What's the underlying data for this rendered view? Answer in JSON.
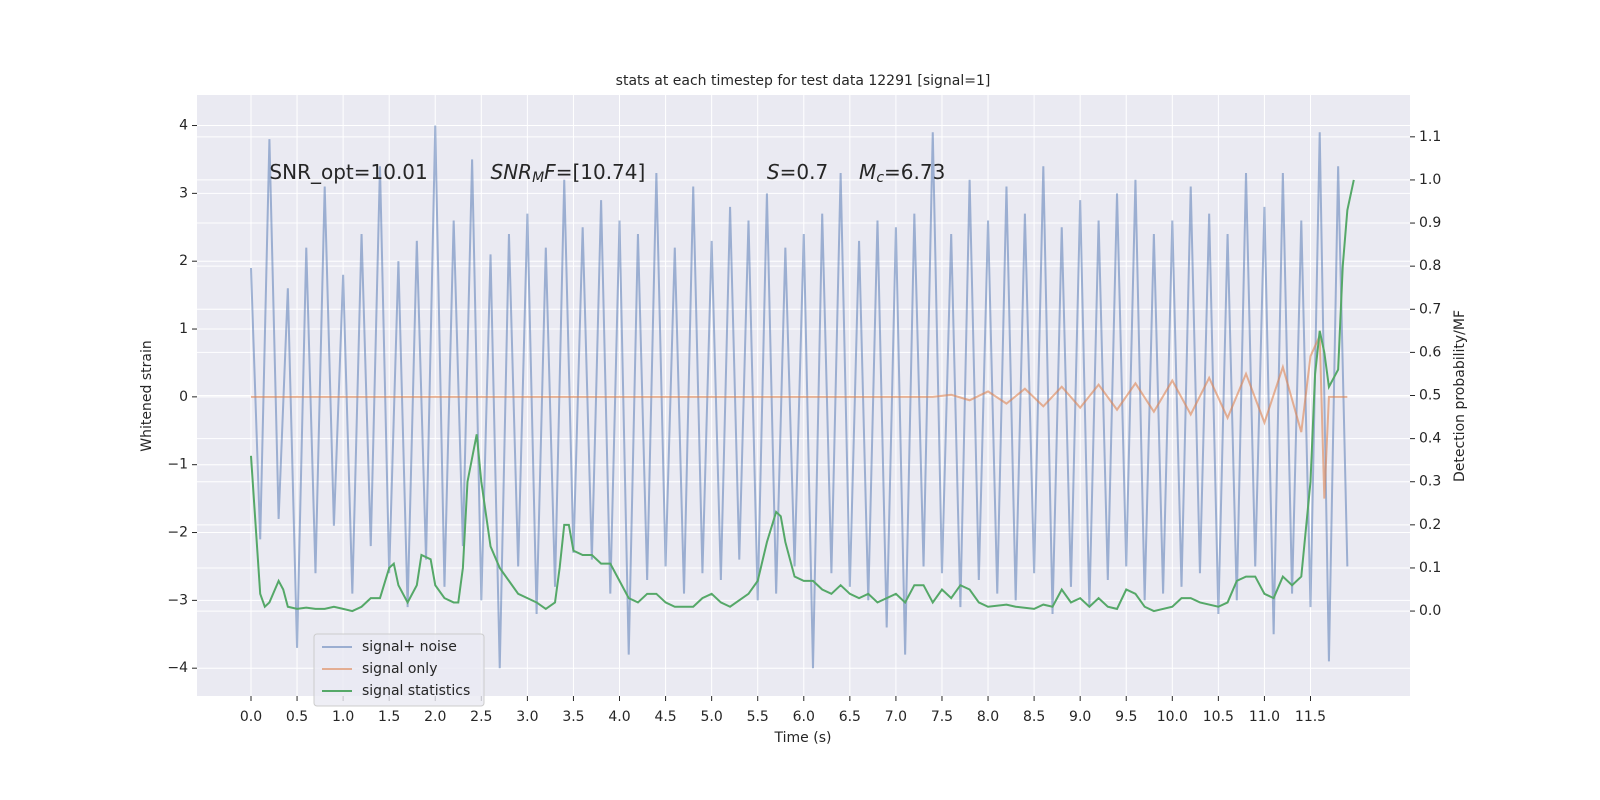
{
  "chart_data": {
    "type": "line",
    "title": "stats at each timestep for test data 12291 [signal=1]",
    "xlabel": "Time (s)",
    "ylabel": "Whitened strain",
    "y2label": "Detection probability/MF",
    "xlim": [
      -0.586,
      12.58
    ],
    "ylim": [
      -4.41,
      4.45
    ],
    "y2lim": [
      -0.197,
      1.197
    ],
    "xticks": [
      {
        "value": 0,
        "label": "0.0"
      },
      0.5,
      {
        "value": 1,
        "label": "1.0"
      },
      1.5,
      {
        "value": 2,
        "label": "2.0"
      },
      2.5,
      {
        "value": 3,
        "label": "3.0"
      },
      3.5,
      {
        "value": 4,
        "label": "4.0"
      },
      4.5,
      {
        "value": 5,
        "label": "5.0"
      },
      5.5,
      {
        "value": 6,
        "label": "6.0"
      },
      6.5,
      {
        "value": 7,
        "label": "7.0"
      },
      7.5,
      {
        "value": 8,
        "label": "8.0"
      },
      8.5,
      {
        "value": 9,
        "label": "9.0"
      },
      9.5,
      {
        "value": 10,
        "label": "10.0"
      },
      10.5,
      {
        "value": 11,
        "label": "11.0"
      },
      11.5
    ],
    "yticks": [
      {
        "value": -4,
        "label": "−4"
      },
      {
        "value": -3,
        "label": "−3"
      },
      {
        "value": -2,
        "label": "−2"
      },
      {
        "value": -1,
        "label": "−1"
      },
      0,
      1,
      2,
      3,
      4
    ],
    "y2ticks": [
      {
        "value": 0,
        "label": "0.0"
      },
      0.1,
      0.2,
      0.3,
      0.4,
      0.5,
      0.6,
      0.7,
      0.8,
      0.9,
      {
        "value": 1,
        "label": "1.0"
      },
      1.1
    ],
    "grid": true,
    "legend": "lower left",
    "annotations": [
      {
        "x": 0.2,
        "parts": [
          {
            "text": "SNR_opt=10.01"
          }
        ]
      },
      {
        "x": 2.6,
        "parts": [
          {
            "text": "SNR",
            "italic": true
          },
          {
            "text": "M",
            "italic": true,
            "sub": true
          },
          {
            "text": "F",
            "italic": true
          },
          {
            "text": "=[10.74]"
          }
        ]
      },
      {
        "x": 5.6,
        "parts": [
          {
            "text": "S",
            "italic": true
          },
          {
            "text": "=0.7"
          }
        ]
      },
      {
        "x": 6.6,
        "parts": [
          {
            "text": "M",
            "italic": true
          },
          {
            "text": "c",
            "italic": true,
            "sub": true
          },
          {
            "text": "=6.73"
          }
        ]
      }
    ],
    "annotation_y": 3.3,
    "series": [
      {
        "name": "signal+ noise",
        "color": "#4c72b0",
        "opacity": 0.5,
        "x": [
          0.0,
          0.1,
          0.2,
          0.3,
          0.4,
          0.5,
          0.6,
          0.7,
          0.8,
          0.9,
          1.0,
          1.1,
          1.2,
          1.3,
          1.4,
          1.5,
          1.6,
          1.7,
          1.8,
          1.9,
          2.0,
          2.1,
          2.2,
          2.3,
          2.4,
          2.5,
          2.6,
          2.7,
          2.8,
          2.9,
          3.0,
          3.1,
          3.2,
          3.3,
          3.4,
          3.5,
          3.6,
          3.7,
          3.8,
          3.9,
          4.0,
          4.1,
          4.2,
          4.3,
          4.4,
          4.5,
          4.6,
          4.7,
          4.8,
          4.9,
          5.0,
          5.1,
          5.2,
          5.3,
          5.4,
          5.5,
          5.6,
          5.7,
          5.8,
          5.9,
          6.0,
          6.1,
          6.2,
          6.3,
          6.4,
          6.5,
          6.6,
          6.7,
          6.8,
          6.9,
          7.0,
          7.1,
          7.2,
          7.3,
          7.4,
          7.5,
          7.6,
          7.7,
          7.8,
          7.9,
          8.0,
          8.1,
          8.2,
          8.3,
          8.4,
          8.5,
          8.6,
          8.7,
          8.8,
          8.9,
          9.0,
          9.1,
          9.2,
          9.3,
          9.4,
          9.5,
          9.6,
          9.7,
          9.8,
          9.9,
          10.0,
          10.1,
          10.2,
          10.3,
          10.4,
          10.5,
          10.6,
          10.7,
          10.8,
          10.9,
          11.0,
          11.1,
          11.2,
          11.3,
          11.4,
          11.5,
          11.6,
          11.7,
          11.8,
          11.9
        ],
        "values": [
          1.9,
          -2.1,
          3.8,
          -1.8,
          1.6,
          -3.7,
          2.2,
          -2.6,
          3.1,
          -1.9,
          1.8,
          -2.9,
          2.4,
          -2.2,
          3.4,
          -2.6,
          2.0,
          -3.1,
          2.3,
          -2.4,
          4.0,
          -2.8,
          2.6,
          -2.2,
          3.5,
          -3.0,
          2.1,
          -4.0,
          2.4,
          -2.5,
          2.7,
          -3.2,
          2.2,
          -2.8,
          3.2,
          -2.3,
          2.5,
          -2.4,
          2.9,
          -2.9,
          2.6,
          -3.8,
          2.4,
          -2.7,
          3.3,
          -2.5,
          2.2,
          -2.9,
          3.1,
          -2.6,
          2.3,
          -2.7,
          2.8,
          -2.4,
          2.6,
          -3.0,
          3.0,
          -2.9,
          2.2,
          -2.5,
          2.4,
          -4.0,
          2.7,
          -2.6,
          3.3,
          -2.8,
          2.3,
          -3.0,
          2.6,
          -3.4,
          2.5,
          -3.8,
          2.7,
          -2.5,
          3.9,
          -2.6,
          2.4,
          -3.1,
          3.2,
          -2.7,
          2.6,
          -2.9,
          3.1,
          -3.0,
          2.7,
          -2.6,
          3.4,
          -3.2,
          2.5,
          -2.8,
          2.9,
          -3.1,
          2.6,
          -2.7,
          3.0,
          -2.5,
          3.2,
          -3.0,
          2.4,
          -2.9,
          2.6,
          -2.8,
          3.1,
          -2.6,
          2.7,
          -3.2,
          2.4,
          -3.0,
          3.3,
          -2.5,
          2.8,
          -3.5,
          3.3,
          -2.9,
          2.6,
          -3.1,
          3.9,
          -3.9,
          3.4,
          -2.5
        ]
      },
      {
        "name": "signal only",
        "color": "#dd8452",
        "opacity": 0.6,
        "x": [
          0.0,
          7.4,
          7.6,
          7.8,
          8.0,
          8.2,
          8.4,
          8.6,
          8.8,
          9.0,
          9.2,
          9.4,
          9.6,
          9.8,
          10.0,
          10.2,
          10.4,
          10.6,
          10.8,
          11.0,
          11.2,
          11.4,
          11.5,
          11.6,
          11.65,
          11.7,
          11.9
        ],
        "values": [
          0,
          0,
          0.03,
          -0.05,
          0.08,
          -0.1,
          0.12,
          -0.14,
          0.15,
          -0.16,
          0.18,
          -0.19,
          0.2,
          -0.22,
          0.24,
          -0.26,
          0.28,
          -0.31,
          0.34,
          -0.38,
          0.44,
          -0.52,
          0.6,
          0.9,
          -1.5,
          0,
          0
        ]
      },
      {
        "name": "signal statistics",
        "color": "#55a868",
        "axis": "y2",
        "x": [
          0.0,
          0.05,
          0.1,
          0.15,
          0.2,
          0.3,
          0.35,
          0.4,
          0.5,
          0.6,
          0.7,
          0.8,
          0.9,
          1.0,
          1.1,
          1.2,
          1.3,
          1.4,
          1.5,
          1.55,
          1.6,
          1.7,
          1.8,
          1.85,
          1.95,
          2.0,
          2.1,
          2.2,
          2.25,
          2.3,
          2.35,
          2.45,
          2.5,
          2.6,
          2.7,
          2.8,
          2.9,
          3.0,
          3.1,
          3.2,
          3.3,
          3.35,
          3.4,
          3.45,
          3.5,
          3.6,
          3.7,
          3.8,
          3.9,
          4.0,
          4.1,
          4.2,
          4.3,
          4.4,
          4.5,
          4.6,
          4.8,
          4.9,
          5.0,
          5.1,
          5.2,
          5.4,
          5.5,
          5.6,
          5.7,
          5.75,
          5.8,
          5.9,
          6.0,
          6.1,
          6.2,
          6.3,
          6.4,
          6.5,
          6.6,
          6.7,
          6.8,
          6.9,
          7.0,
          7.1,
          7.2,
          7.3,
          7.4,
          7.5,
          7.6,
          7.7,
          7.8,
          7.9,
          8.0,
          8.2,
          8.3,
          8.5,
          8.6,
          8.7,
          8.8,
          8.9,
          9.0,
          9.1,
          9.2,
          9.3,
          9.4,
          9.5,
          9.6,
          9.7,
          9.8,
          10.0,
          10.1,
          10.2,
          10.3,
          10.5,
          10.6,
          10.7,
          10.8,
          10.9,
          11.0,
          11.1,
          11.2,
          11.3,
          11.4,
          11.5,
          11.55,
          11.6,
          11.65,
          11.7,
          11.8,
          11.85,
          11.9,
          11.97
        ],
        "values": [
          0.36,
          0.2,
          0.04,
          0.01,
          0.02,
          0.07,
          0.05,
          0.01,
          0.005,
          0.008,
          0.005,
          0.005,
          0.01,
          0.005,
          0.0,
          0.01,
          0.03,
          0.03,
          0.1,
          0.11,
          0.06,
          0.02,
          0.06,
          0.13,
          0.12,
          0.06,
          0.03,
          0.02,
          0.02,
          0.1,
          0.3,
          0.41,
          0.3,
          0.15,
          0.1,
          0.07,
          0.04,
          0.03,
          0.02,
          0.005,
          0.02,
          0.1,
          0.2,
          0.2,
          0.14,
          0.13,
          0.13,
          0.11,
          0.11,
          0.07,
          0.03,
          0.02,
          0.04,
          0.04,
          0.02,
          0.01,
          0.01,
          0.03,
          0.04,
          0.02,
          0.01,
          0.04,
          0.07,
          0.16,
          0.23,
          0.22,
          0.16,
          0.08,
          0.07,
          0.07,
          0.05,
          0.04,
          0.06,
          0.04,
          0.03,
          0.04,
          0.02,
          0.03,
          0.04,
          0.02,
          0.06,
          0.06,
          0.02,
          0.05,
          0.03,
          0.06,
          0.05,
          0.02,
          0.01,
          0.015,
          0.01,
          0.005,
          0.015,
          0.01,
          0.05,
          0.02,
          0.03,
          0.01,
          0.03,
          0.01,
          0.005,
          0.05,
          0.04,
          0.01,
          0.0,
          0.01,
          0.03,
          0.03,
          0.02,
          0.01,
          0.02,
          0.07,
          0.08,
          0.08,
          0.04,
          0.03,
          0.08,
          0.06,
          0.08,
          0.3,
          0.55,
          0.65,
          0.6,
          0.52,
          0.56,
          0.8,
          0.93,
          1.0
        ]
      }
    ]
  }
}
